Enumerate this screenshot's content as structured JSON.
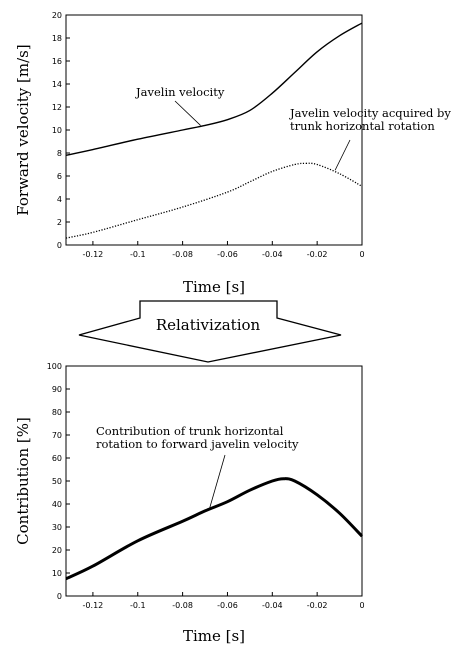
{
  "charts": [
    {
      "type": "line",
      "xlabel": "Time [s]",
      "ylabel": "Forward velocity [m/s]",
      "xlim": [
        -0.132,
        0
      ],
      "ylim": [
        0,
        20
      ],
      "xticks": [
        -0.12,
        -0.1,
        -0.08,
        -0.06,
        -0.04,
        -0.02,
        0
      ],
      "xtick_labels": [
        "-0.12",
        "-0.1",
        "-0.08",
        "-0.06",
        "-0.04",
        "-0.02",
        "0"
      ],
      "yticks": [
        0,
        2,
        4,
        6,
        8,
        10,
        12,
        14,
        16,
        18,
        20
      ],
      "ytick_labels": [
        "0",
        "2",
        "4",
        "6",
        "8",
        "10",
        "12",
        "14",
        "16",
        "18",
        "20"
      ],
      "grid": false,
      "series": [
        {
          "style": "solid",
          "x": [
            -0.132,
            -0.12,
            -0.1,
            -0.08,
            -0.07,
            -0.06,
            -0.05,
            -0.04,
            -0.03,
            -0.02,
            -0.01,
            0
          ],
          "y": [
            7.8,
            8.3,
            9.2,
            10.0,
            10.4,
            10.9,
            11.7,
            13.2,
            15.0,
            16.8,
            18.2,
            19.3
          ]
        },
        {
          "style": "dotted",
          "x": [
            -0.132,
            -0.12,
            -0.1,
            -0.08,
            -0.06,
            -0.05,
            -0.04,
            -0.03,
            -0.025,
            -0.02,
            -0.01,
            0
          ],
          "y": [
            0.6,
            1.1,
            2.2,
            3.3,
            4.6,
            5.5,
            6.4,
            7.0,
            7.1,
            7.0,
            6.2,
            5.1
          ]
        }
      ],
      "annotations": [
        {
          "text": [
            "Javelin velocity"
          ],
          "target": {
            "x": -0.072,
            "y": 10.4
          }
        },
        {
          "text": [
            "Javelin velocity acquired by",
            "trunk horizontal rotation"
          ],
          "target": {
            "x": -0.012,
            "y": 6.5
          }
        }
      ]
    },
    {
      "type": "line",
      "xlabel": "Time [s]",
      "ylabel": "Contribution [%]",
      "xlim": [
        -0.132,
        0
      ],
      "ylim": [
        0,
        100
      ],
      "xticks": [
        -0.12,
        -0.1,
        -0.08,
        -0.06,
        -0.04,
        -0.02,
        0
      ],
      "xtick_labels": [
        "-0.12",
        "-0.1",
        "-0.08",
        "-0.06",
        "-0.04",
        "-0.02",
        "0"
      ],
      "yticks": [
        0,
        10,
        20,
        30,
        40,
        50,
        60,
        70,
        80,
        90,
        100
      ],
      "ytick_labels": [
        "0",
        "10",
        "20",
        "30",
        "40",
        "50",
        "60",
        "70",
        "80",
        "90",
        "100"
      ],
      "grid": false,
      "series": [
        {
          "style": "solid-thick",
          "x": [
            -0.132,
            -0.12,
            -0.1,
            -0.08,
            -0.07,
            -0.06,
            -0.05,
            -0.04,
            -0.035,
            -0.03,
            -0.02,
            -0.01,
            0
          ],
          "y": [
            7.5,
            13.0,
            24.0,
            32.5,
            37.0,
            41.0,
            46.0,
            50.0,
            51.0,
            50.0,
            44.0,
            36.0,
            26.0
          ]
        }
      ],
      "annotations": [
        {
          "text": [
            "Contribution of trunk horizontal",
            "rotation to forward javelin velocity"
          ],
          "target": {
            "x": -0.068,
            "y": 38
          }
        }
      ]
    }
  ],
  "arrow": {
    "label": "Relativization"
  }
}
